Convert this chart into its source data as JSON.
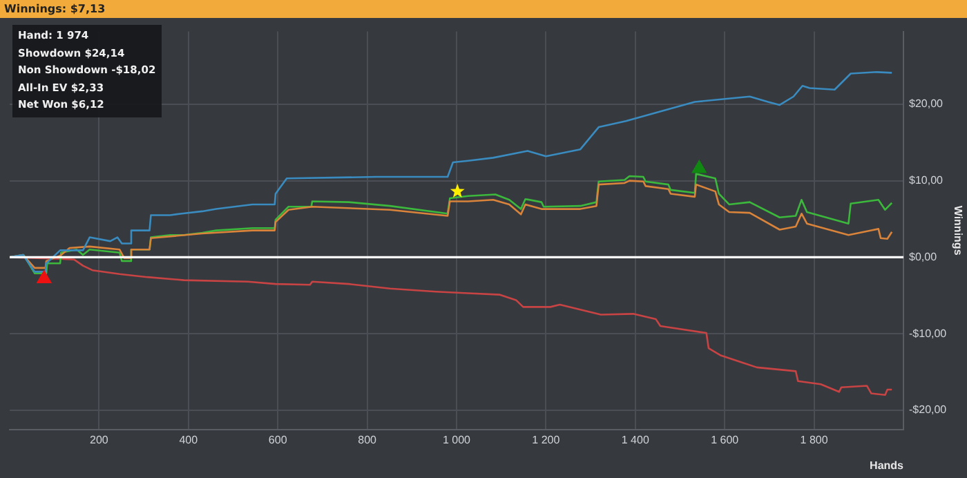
{
  "chart_data": {
    "type": "line",
    "title": "Winnings: $7,13",
    "xlabel": "Hands",
    "ylabel": "Winnings",
    "annotations": [
      "Hand: 1 974",
      "Showdown $24,14",
      "Non Showdown -$18,02",
      "All-In EV $2,33",
      "Net Won $6,12"
    ],
    "xlim": [
      0,
      2000
    ],
    "xticks": [
      200,
      400,
      600,
      800,
      {
        "value": 1000,
        "label": "1 000"
      },
      {
        "value": 1200,
        "label": "1 200"
      },
      {
        "value": 1400,
        "label": "1 400"
      },
      {
        "value": 1600,
        "label": "1 600"
      },
      {
        "value": 1800,
        "label": "1 800"
      }
    ],
    "ylim": [
      -22.5,
      29.5
    ],
    "yticks": [
      {
        "value": -20,
        "label": "-$20,00"
      },
      {
        "value": -10,
        "label": "-$10,00"
      },
      {
        "value": 0,
        "label": "$0,00"
      },
      {
        "value": 10,
        "label": "$10,00"
      },
      {
        "value": 20,
        "label": "$20,00"
      }
    ],
    "grid": true,
    "legend": false,
    "ref_lines": [
      {
        "axis": "y",
        "value": 0,
        "color": "#ffffff"
      }
    ],
    "series": [
      {
        "color": "#3a8cc0",
        "x": [
          0,
          30,
          56,
          80,
          82,
          113,
          164,
          179,
          225,
          241,
          251,
          270,
          272,
          313,
          316,
          359,
          385,
          431,
          462,
          543,
          593,
          595,
          620,
          820,
          980,
          992,
          1026,
          1082,
          1159,
          1200,
          1277,
          1318,
          1379,
          1533,
          1656,
          1697,
          1723,
          1754,
          1774,
          1790,
          1846,
          1882,
          1940,
          1974
        ],
        "values": [
          0,
          0.3,
          -1.9,
          -1.9,
          -0.8,
          0.9,
          0.9,
          2.6,
          2.1,
          2.6,
          1.8,
          1.8,
          3.5,
          3.5,
          5.5,
          5.5,
          5.7,
          6.0,
          6.3,
          6.9,
          6.9,
          8.3,
          10.3,
          10.5,
          10.5,
          12.4,
          12.6,
          13.0,
          13.9,
          13.2,
          14.1,
          17.0,
          17.8,
          20.3,
          21.0,
          20.3,
          19.9,
          21.0,
          22.4,
          22.1,
          21.9,
          24.0,
          24.2,
          24.1
        ]
      },
      {
        "color": "#d9843a",
        "x": [
          0,
          30,
          56,
          80,
          82,
          113,
          134,
          179,
          246,
          256,
          270,
          272,
          313,
          316,
          431,
          543,
          593,
          595,
          624,
          677,
          851,
          980,
          985,
          1026,
          1082,
          1118,
          1144,
          1154,
          1190,
          1277,
          1313,
          1318,
          1376,
          1387,
          1418,
          1423,
          1474,
          1479,
          1533,
          1536,
          1579,
          1587,
          1610,
          1656,
          1723,
          1759,
          1772,
          1784,
          1877,
          1928,
          1944,
          1949,
          1964,
          1974
        ],
        "values": [
          0,
          0.3,
          -1.4,
          -1.4,
          -0.5,
          0.2,
          1.2,
          1.4,
          1.0,
          -0.1,
          -0.1,
          1.0,
          1.0,
          2.5,
          3.1,
          3.5,
          3.5,
          4.6,
          6.2,
          6.6,
          6.2,
          5.4,
          7.3,
          7.3,
          7.5,
          6.9,
          5.6,
          6.9,
          6.3,
          6.3,
          6.7,
          9.5,
          9.7,
          10.0,
          9.9,
          9.3,
          8.9,
          8.3,
          7.9,
          9.5,
          8.6,
          6.9,
          5.9,
          5.8,
          3.6,
          4.0,
          5.7,
          4.4,
          2.9,
          3.5,
          3.7,
          2.5,
          2.4,
          3.3
        ]
      },
      {
        "color": "#3cb83c",
        "x": [
          0,
          31,
          56,
          82,
          84,
          113,
          115,
          150,
          164,
          179,
          246,
          251,
          270,
          272,
          313,
          316,
          359,
          390,
          431,
          462,
          543,
          593,
          595,
          624,
          675,
          677,
          759,
          851,
          980,
          985,
          1026,
          1087,
          1118,
          1144,
          1154,
          1190,
          1195,
          1277,
          1313,
          1318,
          1376,
          1387,
          1418,
          1423,
          1474,
          1479,
          1533,
          1536,
          1579,
          1587,
          1610,
          1656,
          1723,
          1759,
          1772,
          1784,
          1877,
          1882,
          1944,
          1959,
          1974
        ],
        "values": [
          0,
          0.3,
          -2.1,
          -2.1,
          -0.8,
          -0.8,
          0.6,
          1.0,
          0.3,
          1.0,
          0.6,
          -0.5,
          -0.5,
          1.0,
          1.0,
          2.6,
          2.9,
          2.9,
          3.2,
          3.5,
          3.8,
          3.8,
          4.9,
          6.6,
          6.6,
          7.3,
          7.2,
          6.7,
          5.7,
          7.7,
          8.0,
          8.2,
          7.5,
          6.3,
          7.6,
          7.2,
          6.6,
          6.7,
          7.2,
          9.9,
          10.1,
          10.6,
          10.5,
          9.9,
          9.5,
          8.8,
          8.4,
          10.9,
          10.3,
          8.3,
          6.9,
          7.2,
          5.2,
          5.4,
          7.5,
          5.9,
          4.4,
          7.0,
          7.5,
          6.2,
          7.1
        ]
      },
      {
        "color": "#c84444",
        "x": [
          0,
          113,
          144,
          164,
          185,
          246,
          308,
          390,
          533,
          595,
          672,
          677,
          759,
          851,
          954,
          1026,
          1097,
          1133,
          1149,
          1210,
          1231,
          1323,
          1395,
          1446,
          1456,
          1559,
          1564,
          1590,
          1641,
          1672,
          1759,
          1764,
          1815,
          1856,
          1861,
          1918,
          1928,
          1959,
          1964,
          1974
        ],
        "values": [
          0,
          -0.2,
          -0.3,
          -1.1,
          -1.7,
          -2.2,
          -2.6,
          -3.0,
          -3.2,
          -3.5,
          -3.6,
          -3.2,
          -3.5,
          -4.1,
          -4.5,
          -4.7,
          -4.9,
          -5.6,
          -6.5,
          -6.5,
          -6.2,
          -7.5,
          -7.4,
          -8.1,
          -9.0,
          -9.9,
          -11.9,
          -12.8,
          -13.8,
          -14.4,
          -14.9,
          -16.2,
          -16.6,
          -17.6,
          -17.0,
          -16.8,
          -17.8,
          -18.0,
          -17.3,
          -17.3
        ]
      },
      {
        "type": "scatter",
        "color": "#ee1111",
        "marker": "triangle",
        "x": [
          77
        ],
        "values": [
          -2.8
        ]
      },
      {
        "type": "scatter",
        "color": "#ffee00",
        "marker": "star",
        "x": [
          1002
        ],
        "values": [
          8.6
        ]
      },
      {
        "type": "scatter",
        "color": "#118811",
        "marker": "triangle",
        "x": [
          1543
        ],
        "values": [
          11.6
        ]
      }
    ]
  }
}
